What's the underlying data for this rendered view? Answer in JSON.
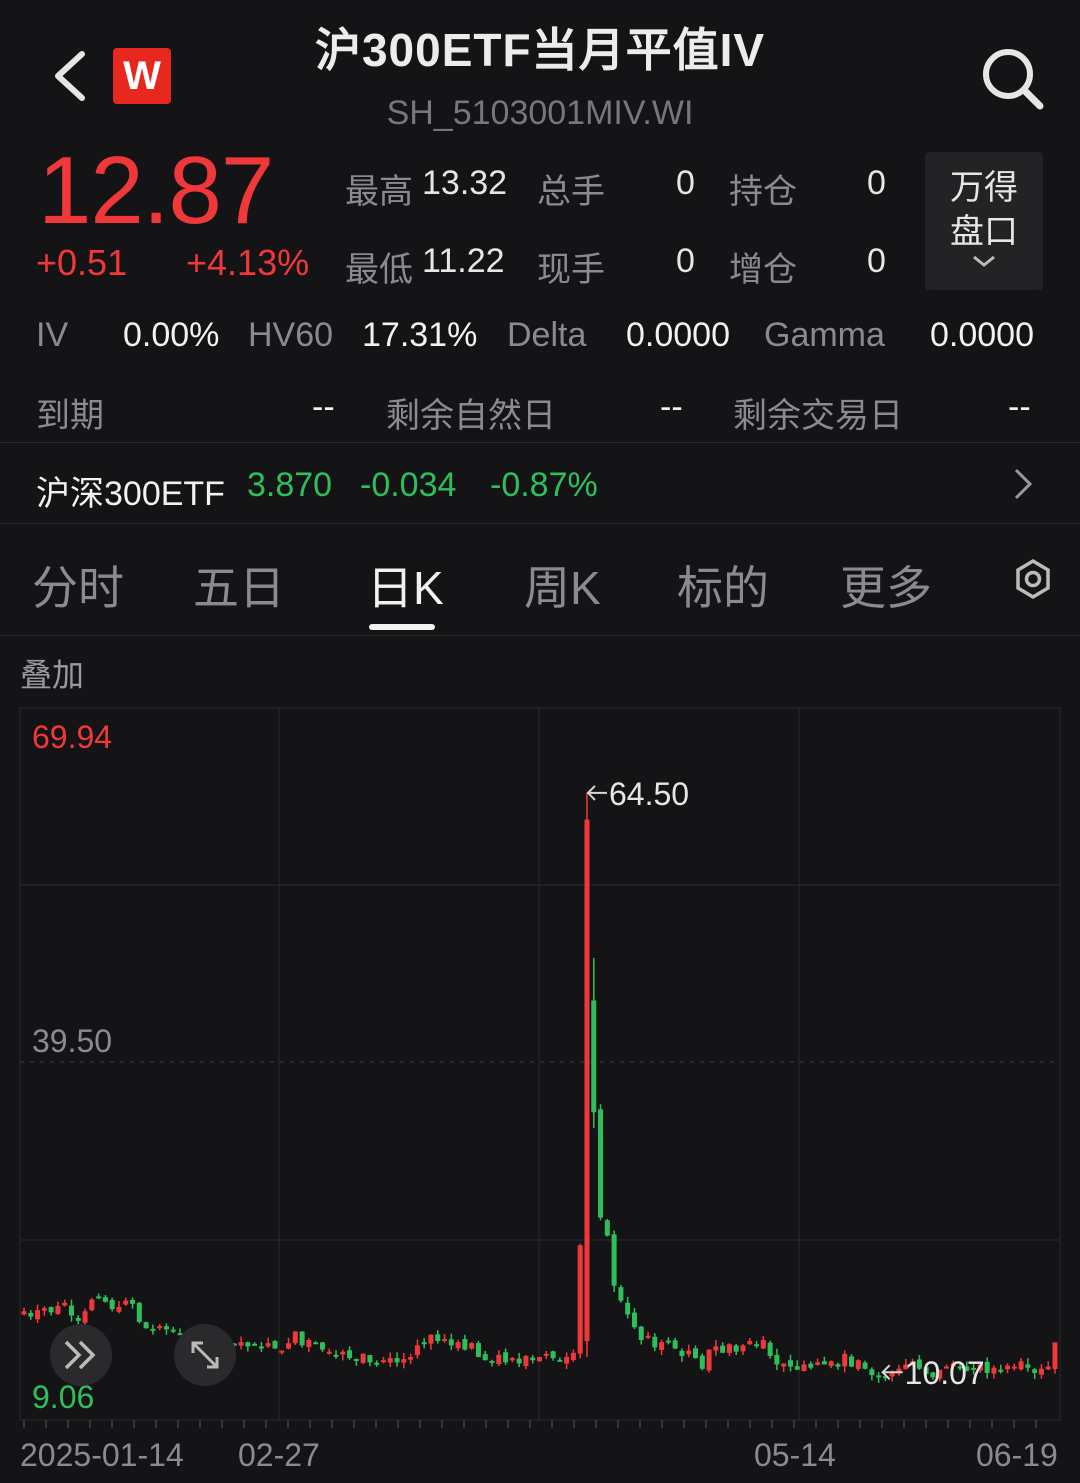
{
  "header": {
    "title": "沪300ETF当月平值IV",
    "subtitle": "SH_5103001MIV.WI",
    "logo_text": "W"
  },
  "quote": {
    "price": "12.87",
    "change": "+0.51",
    "change_pct": "+4.13%",
    "high_label": "最高",
    "high": "13.32",
    "low_label": "最低",
    "low": "11.22",
    "total_vol_label": "总手",
    "total_vol": "0",
    "cur_vol_label": "现手",
    "cur_vol": "0",
    "oi_label": "持仓",
    "oi": "0",
    "oi_chg_label": "增仓",
    "oi_chg": "0",
    "pan_button": [
      "万得",
      "盘口"
    ]
  },
  "greeks": [
    {
      "label": "IV",
      "value": "0.00%"
    },
    {
      "label": "HV60",
      "value": "17.31%"
    },
    {
      "label": "Delta",
      "value": "0.0000"
    },
    {
      "label": "Gamma",
      "value": "0.0000"
    }
  ],
  "expiry": [
    {
      "label": "到期",
      "value": "--"
    },
    {
      "label": "剩余自然日",
      "value": "--"
    },
    {
      "label": "剩余交易日",
      "value": "--"
    }
  ],
  "underlying": {
    "name": "沪深300ETF",
    "price": "3.870",
    "change": "-0.034",
    "change_pct": "-0.87%"
  },
  "tabs": [
    "分时",
    "五日",
    "日K",
    "周K",
    "标的",
    "更多"
  ],
  "active_tab": "日K",
  "overlay_label": "叠加",
  "colors": {
    "up": "#f0383a",
    "down": "#2fbf5a",
    "bg": "#141416"
  },
  "chart_data": {
    "type": "candlestick",
    "y_labels": {
      "top": "69.94",
      "mid": "39.50",
      "bottom": "9.06"
    },
    "ylim": [
      9.06,
      69.94
    ],
    "x_labels": [
      "2025-01-14",
      "02-27",
      "05-14",
      "06-19"
    ],
    "annotations": [
      {
        "text": "64.50",
        "value": 64.5
      },
      {
        "text": "10.07",
        "value": 10.07
      }
    ],
    "closes": [
      15.8,
      15.3,
      15.9,
      16.1,
      15.7,
      16.3,
      16.6,
      15.4,
      14.9,
      15.8,
      16.9,
      17.1,
      16.7,
      16.0,
      16.2,
      16.8,
      16.5,
      14.8,
      14.2,
      14.0,
      14.4,
      14.1,
      13.9,
      13.7,
      13.4,
      13.1,
      13.3,
      13.0,
      12.9,
      12.6,
      12.8,
      12.6,
      12.9,
      12.5,
      12.7,
      12.4,
      12.8,
      12.3,
      12.1,
      12.8,
      13.9,
      12.6,
      13.1,
      12.8,
      12.2,
      12.0,
      11.6,
      12.0,
      11.4,
      11.2,
      11.8,
      11.0,
      10.9,
      11.2,
      11.4,
      11.0,
      11.3,
      11.5,
      12.6,
      12.8,
      13.6,
      13.0,
      13.2,
      12.6,
      12.9,
      12.2,
      12.8,
      11.5,
      11.2,
      11.0,
      11.7,
      11.0,
      11.4,
      10.9,
      11.6,
      11.2,
      11.5,
      11.8,
      11.4,
      11.1,
      11.5,
      11.9,
      22.0,
      62.0,
      34.5,
      24.6,
      22.9,
      18.2,
      16.8,
      15.5,
      14.3,
      13.1,
      13.5,
      12.4,
      12.9,
      13.0,
      12.3,
      11.6,
      12.1,
      11.4,
      10.4,
      12.2,
      12.5,
      11.9,
      12.7,
      12.0,
      12.6,
      13.0,
      12.6,
      13.1,
      11.6,
      10.8,
      10.9,
      10.6,
      10.3,
      10.8,
      10.5,
      11.0,
      10.8,
      11.1,
      10.6,
      11.8,
      10.6,
      11.2,
      10.4,
      9.8,
      9.6,
      9.7,
      10.1,
      10.4,
      10.8,
      11.1,
      10.4,
      9.9,
      9.6,
      10.3,
      10.6,
      10.9,
      10.5,
      10.2,
      10.4,
      10.8,
      10.0,
      10.5,
      10.3,
      10.7,
      10.6,
      11.1,
      10.5,
      10.0,
      10.4,
      10.6,
      12.87
    ]
  }
}
